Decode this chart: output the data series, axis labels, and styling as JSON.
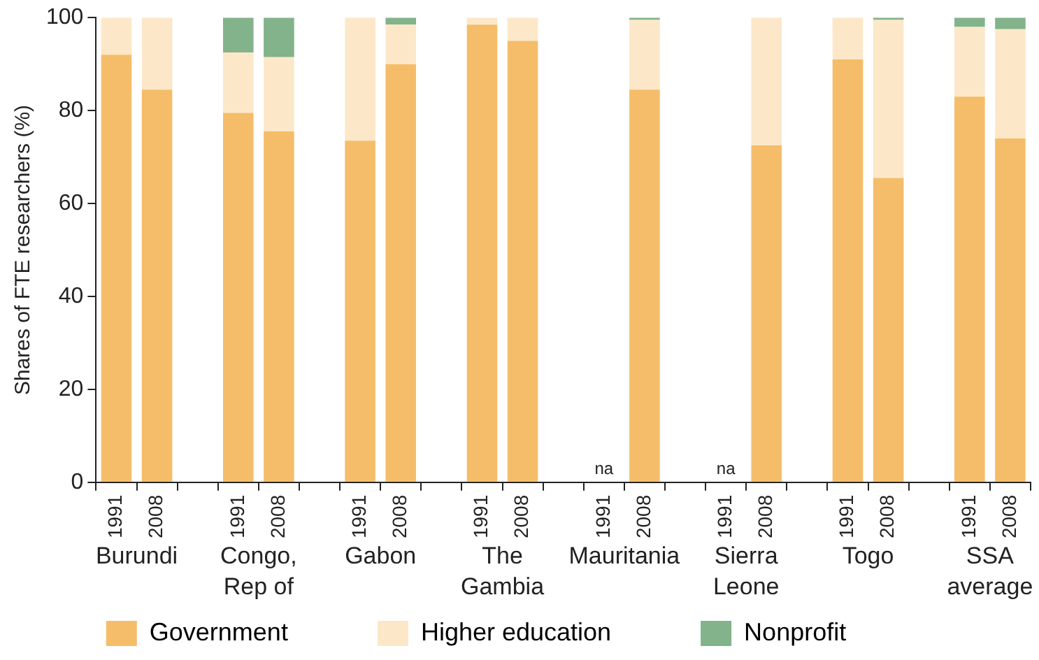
{
  "chart_data": {
    "type": "bar",
    "stacked": true,
    "ylabel": "Shares of FTE researchers (%)",
    "categories": [
      "1991",
      "2008",
      null,
      "1991",
      "2008",
      null,
      "1991",
      "2008",
      null,
      "1991",
      "2008",
      null,
      "1991",
      "2008",
      null,
      "1991",
      "2008",
      null,
      "1991",
      "2008",
      null,
      "1991",
      "2008"
    ],
    "series": [
      {
        "name": "Government",
        "color": "#f5bd69",
        "values": [
          92,
          84.5,
          null,
          79.5,
          75.5,
          null,
          73.5,
          90,
          null,
          98.5,
          95,
          null,
          0,
          84.5,
          null,
          0,
          72.5,
          null,
          91,
          65.5,
          null,
          83,
          74
        ],
        "value_labels": [
          null,
          null,
          null,
          null,
          null,
          null,
          null,
          null,
          null,
          null,
          null,
          null,
          "na",
          null,
          null,
          "na",
          null,
          null,
          null,
          null,
          null,
          null,
          null
        ]
      },
      {
        "name": "Higher education",
        "color": "#fce8c8",
        "values": [
          8,
          15.5,
          null,
          13,
          16,
          null,
          26.5,
          8.5,
          null,
          1.5,
          5,
          null,
          0,
          15,
          null,
          0,
          27.5,
          null,
          9,
          34,
          null,
          15,
          23.5
        ]
      },
      {
        "name": "Nonprofit",
        "color": "#82b38a",
        "values": [
          0,
          0,
          null,
          7.5,
          8.5,
          null,
          0,
          1.5,
          null,
          0,
          0,
          null,
          0,
          0.5,
          null,
          0,
          0,
          null,
          0,
          0.5,
          null,
          2,
          2.5
        ]
      }
    ],
    "annotations": [
      "Burundi",
      "Congo,\nRep of",
      "Gabon",
      "The\nGambia",
      "Mauritania",
      "Sierra\nLeone",
      "Togo",
      "SSA\naverage"
    ],
    "ylim": [
      0,
      100
    ],
    "yticks": [
      0,
      20,
      40,
      60,
      80,
      100
    ],
    "grid": false,
    "legend": "bottom"
  }
}
